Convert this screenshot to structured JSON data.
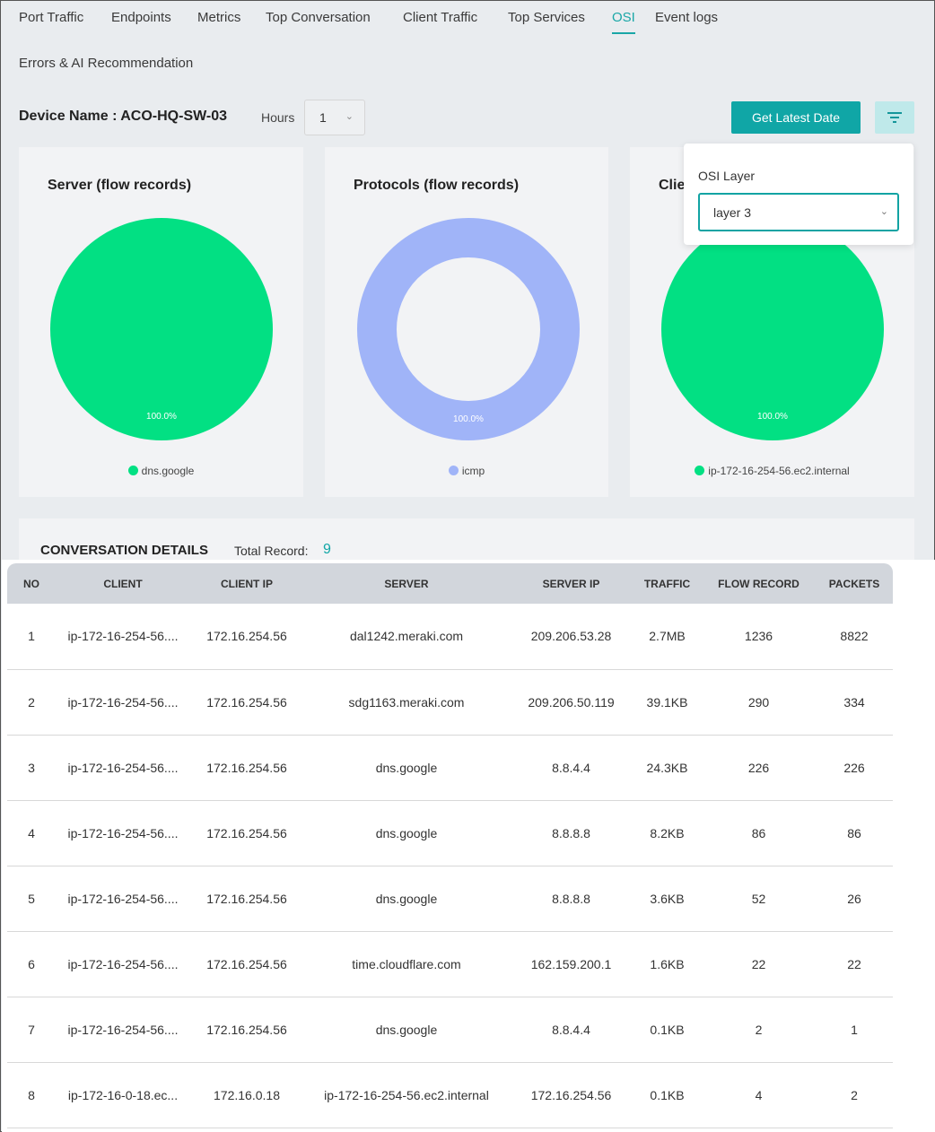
{
  "tabs": [
    "Port Traffic",
    "Endpoints",
    "Metrics",
    "Top Conversation",
    "Client Traffic",
    "Top Services",
    "OSI",
    "Event logs",
    "Errors & AI Recommendation"
  ],
  "active_tab": "OSI",
  "device": {
    "label": "Device Name : ACO-HQ-SW-03",
    "hours_label": "Hours",
    "hours_value": "1"
  },
  "buttons": {
    "get_latest": "Get Latest Date"
  },
  "popover": {
    "label": "OSI Layer",
    "value": "layer 3"
  },
  "cards": [
    {
      "title": "Server (flow records)",
      "percent": "100.0%",
      "legend": "dns.google",
      "color": "#02e083",
      "donut": false
    },
    {
      "title": "Protocols (flow records)",
      "percent": "100.0%",
      "legend": "icmp",
      "color": "#a0b4f8",
      "donut": true
    },
    {
      "title": "Client (flow records)",
      "percent": "100.0%",
      "legend": "ip-172-16-254-56.ec2.internal",
      "color": "#02e083",
      "donut": false
    }
  ],
  "details": {
    "title": "CONVERSATION DETAILS",
    "total_label": "Total Record:",
    "total_value": "9"
  },
  "table": {
    "headers": [
      "NO",
      "CLIENT",
      "CLIENT IP",
      "SERVER",
      "SERVER IP",
      "TRAFFIC",
      "FLOW RECORD",
      "PACKETS"
    ],
    "rows": [
      [
        "1",
        "ip-172-16-254-56....",
        "172.16.254.56",
        "dal1242.meraki.com",
        "209.206.53.28",
        "2.7MB",
        "1236",
        "8822"
      ],
      [
        "2",
        "ip-172-16-254-56....",
        "172.16.254.56",
        "sdg1163.meraki.com",
        "209.206.50.119",
        "39.1KB",
        "290",
        "334"
      ],
      [
        "3",
        "ip-172-16-254-56....",
        "172.16.254.56",
        "dns.google",
        "8.8.4.4",
        "24.3KB",
        "226",
        "226"
      ],
      [
        "4",
        "ip-172-16-254-56....",
        "172.16.254.56",
        "dns.google",
        "8.8.8.8",
        "8.2KB",
        "86",
        "86"
      ],
      [
        "5",
        "ip-172-16-254-56....",
        "172.16.254.56",
        "dns.google",
        "8.8.8.8",
        "3.6KB",
        "52",
        "26"
      ],
      [
        "6",
        "ip-172-16-254-56....",
        "172.16.254.56",
        "time.cloudflare.com",
        "162.159.200.1",
        "1.6KB",
        "22",
        "22"
      ],
      [
        "7",
        "ip-172-16-254-56....",
        "172.16.254.56",
        "dns.google",
        "8.8.4.4",
        "0.1KB",
        "2",
        "1"
      ],
      [
        "8",
        "ip-172-16-0-18.ec...",
        "172.16.0.18",
        "ip-172-16-254-56.ec2.internal",
        "172.16.254.56",
        "0.1KB",
        "4",
        "2"
      ]
    ]
  }
}
